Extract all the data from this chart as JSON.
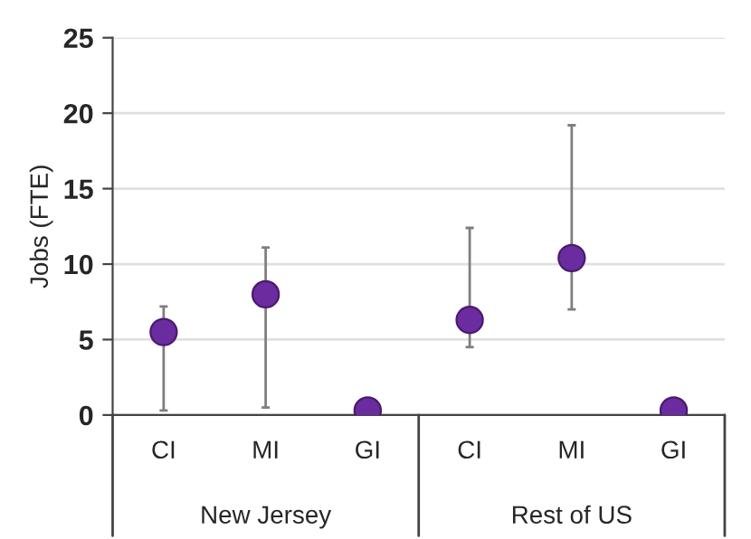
{
  "chart_data": {
    "type": "scatter",
    "ylabel": "Jobs (FTE)",
    "categories": [
      "CI",
      "MI",
      "GI",
      "CI",
      "MI",
      "GI"
    ],
    "series": [
      {
        "color": "#6a2c9e",
        "values": [
          5.5,
          8.0,
          0.3,
          6.3,
          10.4,
          0.3
        ],
        "errors": [
          [
            0.3,
            7.2
          ],
          [
            0.5,
            11.1
          ],
          null,
          [
            4.5,
            12.4
          ],
          [
            7.0,
            19.2
          ],
          null
        ]
      }
    ],
    "annotations": [
      "New Jersey",
      "Rest of US"
    ],
    "ylim": [
      0,
      25
    ],
    "yticks": [
      0,
      5,
      10,
      15,
      20,
      25
    ],
    "grid": "y",
    "marker": "circle"
  }
}
